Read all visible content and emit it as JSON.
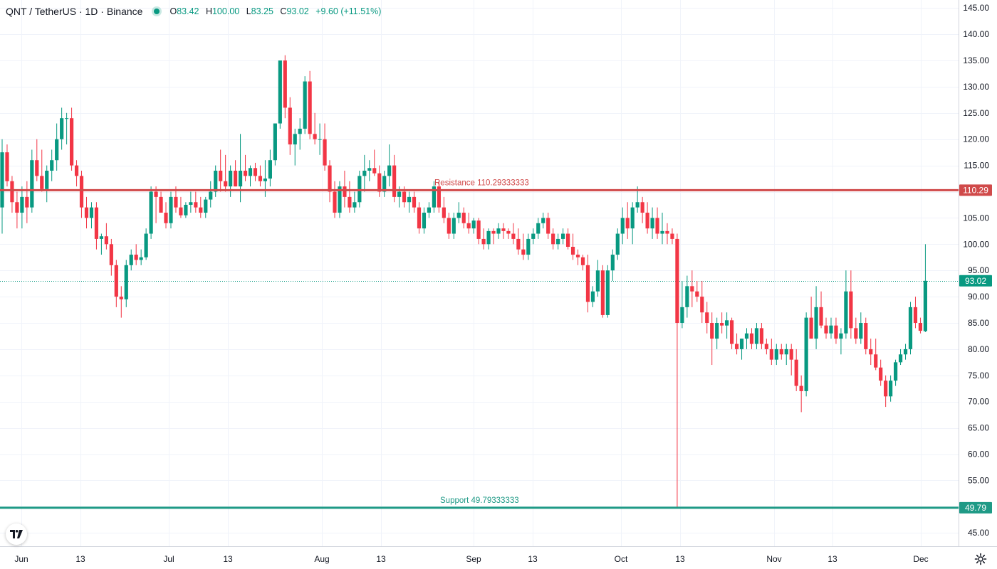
{
  "header": {
    "symbol": "QNT / TetherUS · 1D · Binance",
    "open_label": "O",
    "open": "83.42",
    "high_label": "H",
    "high": "100.00",
    "low_label": "L",
    "low": "83.25",
    "close_label": "C",
    "close": "93.02",
    "change": "+9.60 (+11.51%)"
  },
  "colors": {
    "up": "#089981",
    "down": "#f23645",
    "resistance": "#d04a4a",
    "support": "#1f9a86",
    "grid": "#f0f3fa",
    "axis_text": "#131722"
  },
  "icons": [
    "tradingview-logo-icon",
    "gear-icon"
  ],
  "chart_data": {
    "type": "candlestick",
    "y_axis_position": "right",
    "ylim": [
      42.3,
      146.5
    ],
    "y_ticks": [
      45,
      50,
      55,
      60,
      65,
      70,
      75,
      80,
      85,
      90,
      95,
      100,
      105,
      110,
      115,
      120,
      125,
      130,
      135,
      140,
      145
    ],
    "x_ticks": [
      "Jun",
      "13",
      "Jul",
      "13",
      "Aug",
      "13",
      "Sep",
      "13",
      "Oct",
      "13",
      "Nov",
      "13",
      "Dec"
    ],
    "grid": true,
    "last_price": 93.02,
    "lines": [
      {
        "label": "Resistance 110.29333333",
        "value": 110.29,
        "axis_label": "110.29",
        "color": "#d04a4a"
      },
      {
        "label": "Support 49.79333333",
        "value": 49.79,
        "axis_label": "49.79",
        "color": "#1f9a86"
      }
    ],
    "last_price_label": "93.02",
    "candles": [
      {
        "o": 107,
        "h": 120,
        "l": 102,
        "c": 117.5
      },
      {
        "o": 117.5,
        "h": 119,
        "l": 111,
        "c": 112
      },
      {
        "o": 112,
        "h": 113,
        "l": 106,
        "c": 108
      },
      {
        "o": 108,
        "h": 110,
        "l": 103,
        "c": 106
      },
      {
        "o": 106,
        "h": 111,
        "l": 103,
        "c": 109
      },
      {
        "o": 109,
        "h": 112,
        "l": 104,
        "c": 107
      },
      {
        "o": 107,
        "h": 118,
        "l": 106,
        "c": 116
      },
      {
        "o": 116,
        "h": 120,
        "l": 112,
        "c": 113
      },
      {
        "o": 113,
        "h": 118,
        "l": 110,
        "c": 110.5
      },
      {
        "o": 110.5,
        "h": 115,
        "l": 108,
        "c": 114
      },
      {
        "o": 114,
        "h": 118,
        "l": 112,
        "c": 116
      },
      {
        "o": 116,
        "h": 123,
        "l": 114,
        "c": 120
      },
      {
        "o": 120,
        "h": 126,
        "l": 118,
        "c": 124
      },
      {
        "o": 124,
        "h": 125,
        "l": 119,
        "c": 124
      },
      {
        "o": 124,
        "h": 126,
        "l": 114,
        "c": 115
      },
      {
        "o": 115,
        "h": 116,
        "l": 111,
        "c": 113
      },
      {
        "o": 113,
        "h": 114,
        "l": 105,
        "c": 107
      },
      {
        "o": 107,
        "h": 109,
        "l": 103,
        "c": 105
      },
      {
        "o": 105,
        "h": 108,
        "l": 103,
        "c": 107
      },
      {
        "o": 107,
        "h": 108,
        "l": 99,
        "c": 101
      },
      {
        "o": 101,
        "h": 102,
        "l": 98,
        "c": 101.5
      },
      {
        "o": 101.5,
        "h": 104,
        "l": 99,
        "c": 100
      },
      {
        "o": 100,
        "h": 101,
        "l": 94,
        "c": 96
      },
      {
        "o": 96,
        "h": 97,
        "l": 88,
        "c": 90
      },
      {
        "o": 90,
        "h": 92,
        "l": 86,
        "c": 89.5
      },
      {
        "o": 89.5,
        "h": 97,
        "l": 88,
        "c": 96
      },
      {
        "o": 96,
        "h": 99,
        "l": 95,
        "c": 98
      },
      {
        "o": 98,
        "h": 100,
        "l": 96,
        "c": 97
      },
      {
        "o": 97,
        "h": 99,
        "l": 96,
        "c": 97.5
      },
      {
        "o": 97.5,
        "h": 103,
        "l": 97,
        "c": 102
      },
      {
        "o": 102,
        "h": 111,
        "l": 101,
        "c": 110
      },
      {
        "o": 110,
        "h": 111,
        "l": 104,
        "c": 109
      },
      {
        "o": 109,
        "h": 110,
        "l": 106,
        "c": 106
      },
      {
        "o": 106,
        "h": 108,
        "l": 103,
        "c": 104
      },
      {
        "o": 104,
        "h": 110,
        "l": 103,
        "c": 109
      },
      {
        "o": 109,
        "h": 111,
        "l": 106,
        "c": 107
      },
      {
        "o": 107,
        "h": 109,
        "l": 105,
        "c": 105.5
      },
      {
        "o": 105.5,
        "h": 108,
        "l": 105,
        "c": 107.5
      },
      {
        "o": 107.5,
        "h": 110,
        "l": 106,
        "c": 108
      },
      {
        "o": 108,
        "h": 110,
        "l": 106,
        "c": 107
      },
      {
        "o": 107,
        "h": 109,
        "l": 105,
        "c": 106
      },
      {
        "o": 106,
        "h": 109,
        "l": 105,
        "c": 108.5
      },
      {
        "o": 108.5,
        "h": 112,
        "l": 107,
        "c": 110
      },
      {
        "o": 110,
        "h": 115,
        "l": 109,
        "c": 114
      },
      {
        "o": 114,
        "h": 118,
        "l": 110,
        "c": 112
      },
      {
        "o": 112,
        "h": 117,
        "l": 110,
        "c": 111
      },
      {
        "o": 111,
        "h": 115,
        "l": 109,
        "c": 114
      },
      {
        "o": 114,
        "h": 116,
        "l": 111,
        "c": 111
      },
      {
        "o": 111,
        "h": 121,
        "l": 108,
        "c": 114
      },
      {
        "o": 114,
        "h": 117,
        "l": 112,
        "c": 113
      },
      {
        "o": 113,
        "h": 115,
        "l": 111,
        "c": 114.5
      },
      {
        "o": 114.5,
        "h": 115.5,
        "l": 112,
        "c": 113
      },
      {
        "o": 113,
        "h": 115,
        "l": 111,
        "c": 112
      },
      {
        "o": 112,
        "h": 116,
        "l": 109,
        "c": 112.5
      },
      {
        "o": 112.5,
        "h": 118,
        "l": 111,
        "c": 116
      },
      {
        "o": 116,
        "h": 123,
        "l": 115,
        "c": 123
      },
      {
        "o": 123,
        "h": 135,
        "l": 122,
        "c": 135
      },
      {
        "o": 135,
        "h": 136,
        "l": 124,
        "c": 126
      },
      {
        "o": 126,
        "h": 128,
        "l": 117,
        "c": 119
      },
      {
        "o": 119,
        "h": 122,
        "l": 115,
        "c": 121
      },
      {
        "o": 121,
        "h": 124,
        "l": 118,
        "c": 122
      },
      {
        "o": 122,
        "h": 132,
        "l": 121,
        "c": 131
      },
      {
        "o": 131,
        "h": 133,
        "l": 120,
        "c": 121
      },
      {
        "o": 121,
        "h": 125,
        "l": 119,
        "c": 120
      },
      {
        "o": 120,
        "h": 123,
        "l": 117,
        "c": 120
      },
      {
        "o": 120,
        "h": 123,
        "l": 114,
        "c": 115
      },
      {
        "o": 115,
        "h": 116,
        "l": 108,
        "c": 110
      },
      {
        "o": 110,
        "h": 112,
        "l": 105,
        "c": 106
      },
      {
        "o": 106,
        "h": 112,
        "l": 105,
        "c": 111
      },
      {
        "o": 111,
        "h": 114,
        "l": 107,
        "c": 109
      },
      {
        "o": 109,
        "h": 112,
        "l": 106,
        "c": 107
      },
      {
        "o": 107,
        "h": 110,
        "l": 106,
        "c": 108
      },
      {
        "o": 108,
        "h": 114,
        "l": 107,
        "c": 113
      },
      {
        "o": 113,
        "h": 117,
        "l": 110,
        "c": 114
      },
      {
        "o": 114,
        "h": 116,
        "l": 112,
        "c": 114.5
      },
      {
        "o": 114.5,
        "h": 118,
        "l": 113,
        "c": 113.5
      },
      {
        "o": 113.5,
        "h": 115,
        "l": 109,
        "c": 110
      },
      {
        "o": 110,
        "h": 114,
        "l": 109,
        "c": 113
      },
      {
        "o": 113,
        "h": 119,
        "l": 111,
        "c": 115
      },
      {
        "o": 115,
        "h": 117,
        "l": 108,
        "c": 109
      },
      {
        "o": 109,
        "h": 111,
        "l": 107,
        "c": 110
      },
      {
        "o": 110,
        "h": 111,
        "l": 107,
        "c": 108
      },
      {
        "o": 108,
        "h": 110,
        "l": 106,
        "c": 109
      },
      {
        "o": 109,
        "h": 110,
        "l": 106,
        "c": 107
      },
      {
        "o": 107,
        "h": 108,
        "l": 102,
        "c": 103
      },
      {
        "o": 103,
        "h": 107,
        "l": 102,
        "c": 106
      },
      {
        "o": 106,
        "h": 108,
        "l": 105,
        "c": 107
      },
      {
        "o": 107,
        "h": 112,
        "l": 106,
        "c": 111
      },
      {
        "o": 111,
        "h": 112,
        "l": 106,
        "c": 107
      },
      {
        "o": 107,
        "h": 109,
        "l": 104,
        "c": 105
      },
      {
        "o": 105,
        "h": 106,
        "l": 101,
        "c": 102
      },
      {
        "o": 102,
        "h": 106,
        "l": 101,
        "c": 105
      },
      {
        "o": 105,
        "h": 108,
        "l": 104,
        "c": 106
      },
      {
        "o": 106,
        "h": 107,
        "l": 103,
        "c": 104
      },
      {
        "o": 104,
        "h": 106,
        "l": 102,
        "c": 103
      },
      {
        "o": 103,
        "h": 105,
        "l": 102,
        "c": 104.5
      },
      {
        "o": 104.5,
        "h": 105,
        "l": 100,
        "c": 101
      },
      {
        "o": 101,
        "h": 103,
        "l": 99,
        "c": 100
      },
      {
        "o": 100,
        "h": 103,
        "l": 99,
        "c": 102.5
      },
      {
        "o": 102.5,
        "h": 103,
        "l": 100,
        "c": 102
      },
      {
        "o": 102,
        "h": 104,
        "l": 101,
        "c": 103
      },
      {
        "o": 103,
        "h": 104,
        "l": 101,
        "c": 102.5
      },
      {
        "o": 102.5,
        "h": 103,
        "l": 101,
        "c": 102
      },
      {
        "o": 102,
        "h": 104,
        "l": 100,
        "c": 101
      },
      {
        "o": 101,
        "h": 103,
        "l": 98,
        "c": 99
      },
      {
        "o": 99,
        "h": 102,
        "l": 97,
        "c": 98
      },
      {
        "o": 98,
        "h": 102,
        "l": 97,
        "c": 101
      },
      {
        "o": 101,
        "h": 103,
        "l": 100,
        "c": 102
      },
      {
        "o": 102,
        "h": 105,
        "l": 101,
        "c": 104
      },
      {
        "o": 104,
        "h": 106,
        "l": 103,
        "c": 105
      },
      {
        "o": 105,
        "h": 106,
        "l": 101,
        "c": 102
      },
      {
        "o": 102,
        "h": 103,
        "l": 99,
        "c": 100
      },
      {
        "o": 100,
        "h": 102,
        "l": 99,
        "c": 101
      },
      {
        "o": 101,
        "h": 103,
        "l": 100,
        "c": 102
      },
      {
        "o": 102,
        "h": 103,
        "l": 99,
        "c": 99.5
      },
      {
        "o": 99.5,
        "h": 102,
        "l": 97,
        "c": 98
      },
      {
        "o": 98,
        "h": 99,
        "l": 96,
        "c": 97.5
      },
      {
        "o": 97.5,
        "h": 98,
        "l": 95,
        "c": 96
      },
      {
        "o": 96,
        "h": 98,
        "l": 87,
        "c": 89
      },
      {
        "o": 89,
        "h": 92,
        "l": 88,
        "c": 91
      },
      {
        "o": 91,
        "h": 97,
        "l": 90,
        "c": 95
      },
      {
        "o": 95,
        "h": 96,
        "l": 86,
        "c": 86.5
      },
      {
        "o": 86.5,
        "h": 96,
        "l": 86,
        "c": 95
      },
      {
        "o": 95,
        "h": 99,
        "l": 93,
        "c": 98
      },
      {
        "o": 98,
        "h": 103,
        "l": 97,
        "c": 102
      },
      {
        "o": 102,
        "h": 107,
        "l": 100,
        "c": 105
      },
      {
        "o": 105,
        "h": 108,
        "l": 101,
        "c": 103
      },
      {
        "o": 103,
        "h": 108,
        "l": 100,
        "c": 107
      },
      {
        "o": 107,
        "h": 111,
        "l": 106,
        "c": 108
      },
      {
        "o": 108,
        "h": 109,
        "l": 104,
        "c": 106
      },
      {
        "o": 106,
        "h": 108,
        "l": 102,
        "c": 103
      },
      {
        "o": 103,
        "h": 107,
        "l": 101,
        "c": 105
      },
      {
        "o": 105,
        "h": 107,
        "l": 101,
        "c": 102
      },
      {
        "o": 102,
        "h": 106,
        "l": 100,
        "c": 102.5
      },
      {
        "o": 102.5,
        "h": 104,
        "l": 100,
        "c": 102
      },
      {
        "o": 102,
        "h": 103,
        "l": 100,
        "c": 101
      },
      {
        "o": 101,
        "h": 102,
        "l": 49.79,
        "c": 85
      },
      {
        "o": 85,
        "h": 93,
        "l": 84,
        "c": 88
      },
      {
        "o": 88,
        "h": 94,
        "l": 86,
        "c": 92
      },
      {
        "o": 92,
        "h": 95,
        "l": 88,
        "c": 91
      },
      {
        "o": 91,
        "h": 93,
        "l": 89,
        "c": 90
      },
      {
        "o": 90,
        "h": 93,
        "l": 85,
        "c": 87
      },
      {
        "o": 87,
        "h": 89,
        "l": 83,
        "c": 85
      },
      {
        "o": 85,
        "h": 87,
        "l": 77,
        "c": 82
      },
      {
        "o": 82,
        "h": 86,
        "l": 80,
        "c": 85
      },
      {
        "o": 85,
        "h": 87,
        "l": 83,
        "c": 84.5
      },
      {
        "o": 84.5,
        "h": 87,
        "l": 82,
        "c": 85.5
      },
      {
        "o": 85.5,
        "h": 86,
        "l": 80,
        "c": 81
      },
      {
        "o": 81,
        "h": 83,
        "l": 79,
        "c": 80
      },
      {
        "o": 80,
        "h": 82,
        "l": 78,
        "c": 82
      },
      {
        "o": 82,
        "h": 84,
        "l": 80,
        "c": 83
      },
      {
        "o": 83,
        "h": 84,
        "l": 80,
        "c": 81
      },
      {
        "o": 81,
        "h": 85,
        "l": 80,
        "c": 84
      },
      {
        "o": 84,
        "h": 85,
        "l": 80,
        "c": 81
      },
      {
        "o": 81,
        "h": 82,
        "l": 79,
        "c": 80
      },
      {
        "o": 80,
        "h": 82,
        "l": 77,
        "c": 78
      },
      {
        "o": 78,
        "h": 81,
        "l": 77,
        "c": 80
      },
      {
        "o": 80,
        "h": 81,
        "l": 78,
        "c": 79
      },
      {
        "o": 79,
        "h": 81,
        "l": 77,
        "c": 80
      },
      {
        "o": 80,
        "h": 81,
        "l": 75,
        "c": 78
      },
      {
        "o": 78,
        "h": 80,
        "l": 72,
        "c": 73
      },
      {
        "o": 73,
        "h": 75,
        "l": 68,
        "c": 72
      },
      {
        "o": 72,
        "h": 87,
        "l": 71,
        "c": 86
      },
      {
        "o": 86,
        "h": 90,
        "l": 82,
        "c": 82
      },
      {
        "o": 82,
        "h": 92,
        "l": 80,
        "c": 88
      },
      {
        "o": 88,
        "h": 91,
        "l": 84,
        "c": 84.5
      },
      {
        "o": 84.5,
        "h": 86,
        "l": 82,
        "c": 83
      },
      {
        "o": 83,
        "h": 86,
        "l": 82,
        "c": 84.5
      },
      {
        "o": 84.5,
        "h": 86,
        "l": 81,
        "c": 82
      },
      {
        "o": 82,
        "h": 84,
        "l": 79,
        "c": 83
      },
      {
        "o": 83,
        "h": 95,
        "l": 82,
        "c": 91
      },
      {
        "o": 91,
        "h": 95,
        "l": 82,
        "c": 84
      },
      {
        "o": 84,
        "h": 86,
        "l": 81,
        "c": 82
      },
      {
        "o": 82,
        "h": 87,
        "l": 81,
        "c": 85
      },
      {
        "o": 85,
        "h": 86,
        "l": 79,
        "c": 80
      },
      {
        "o": 80,
        "h": 82,
        "l": 77,
        "c": 79
      },
      {
        "o": 79,
        "h": 82,
        "l": 76,
        "c": 76.5
      },
      {
        "o": 76.5,
        "h": 78,
        "l": 73,
        "c": 74
      },
      {
        "o": 74,
        "h": 75,
        "l": 69,
        "c": 71
      },
      {
        "o": 71,
        "h": 75,
        "l": 70,
        "c": 74
      },
      {
        "o": 74,
        "h": 78,
        "l": 73,
        "c": 77.5
      },
      {
        "o": 77.5,
        "h": 80,
        "l": 77,
        "c": 79
      },
      {
        "o": 79,
        "h": 81,
        "l": 78,
        "c": 80
      },
      {
        "o": 80,
        "h": 89,
        "l": 79,
        "c": 88
      },
      {
        "o": 88,
        "h": 90,
        "l": 84,
        "c": 85
      },
      {
        "o": 85,
        "h": 86,
        "l": 83,
        "c": 83.5
      },
      {
        "o": 83.42,
        "h": 100,
        "l": 83.25,
        "c": 93.02
      }
    ]
  }
}
